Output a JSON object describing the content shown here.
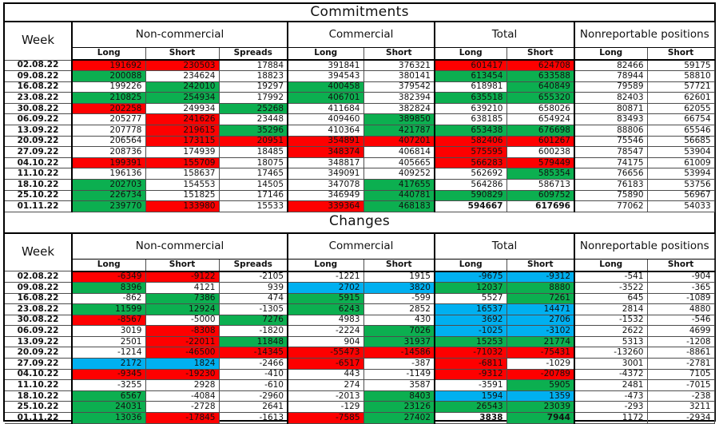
{
  "colors": {
    "green": "#0caf50",
    "red": "#fe0000",
    "blue": "#00b0f0"
  },
  "chart_data": [
    {
      "type": "table",
      "title": "Commitments",
      "week_label": "Week",
      "column_groups": [
        {
          "label": "Non-commercial",
          "columns": [
            "Long",
            "Short",
            "Spreads"
          ]
        },
        {
          "label": "Commercial",
          "columns": [
            "Long",
            "Short"
          ]
        },
        {
          "label": "Total",
          "columns": [
            "Long",
            "Short"
          ]
        },
        {
          "label": "Nonreportable positions",
          "columns": [
            "Long",
            "Short"
          ]
        }
      ],
      "rows": [
        {
          "week": "02.08.22",
          "values": [
            191692,
            230503,
            17884,
            391841,
            376321,
            601417,
            624708,
            82466,
            59175
          ],
          "highlights": [
            "red",
            "red",
            "",
            "",
            "",
            "red",
            "red",
            "",
            ""
          ]
        },
        {
          "week": "09.08.22",
          "values": [
            200088,
            234624,
            18823,
            394543,
            380141,
            613454,
            633588,
            78944,
            58810
          ],
          "highlights": [
            "green",
            "",
            "",
            "",
            "",
            "green",
            "green",
            "",
            ""
          ]
        },
        {
          "week": "16.08.22",
          "values": [
            199226,
            242010,
            19297,
            400458,
            379542,
            618981,
            640849,
            79589,
            57721
          ],
          "highlights": [
            "",
            "green",
            "",
            "green",
            "",
            "",
            "green",
            "",
            ""
          ]
        },
        {
          "week": "23.08.22",
          "values": [
            210825,
            254934,
            17992,
            406701,
            382394,
            635518,
            655320,
            82403,
            62601
          ],
          "highlights": [
            "green",
            "green",
            "",
            "green",
            "",
            "green",
            "green",
            "",
            ""
          ]
        },
        {
          "week": "30.08.22",
          "values": [
            202258,
            249934,
            25268,
            411684,
            382824,
            639210,
            658026,
            80871,
            62055
          ],
          "highlights": [
            "red",
            "",
            "green",
            "",
            "",
            "",
            "",
            "",
            ""
          ]
        },
        {
          "week": "06.09.22",
          "values": [
            205277,
            241626,
            23448,
            409460,
            389850,
            638185,
            654924,
            83493,
            66754
          ],
          "highlights": [
            "",
            "red",
            "",
            "",
            "green",
            "",
            "",
            "",
            ""
          ]
        },
        {
          "week": "13.09.22",
          "values": [
            207778,
            219615,
            35296,
            410364,
            421787,
            653438,
            676698,
            88806,
            65546
          ],
          "highlights": [
            "",
            "red",
            "green",
            "",
            "green",
            "green",
            "green",
            "",
            ""
          ]
        },
        {
          "week": "20.09.22",
          "values": [
            206564,
            173115,
            20951,
            354891,
            407201,
            582406,
            601267,
            75546,
            56685
          ],
          "highlights": [
            "",
            "red",
            "red",
            "red",
            "red",
            "red",
            "red",
            "",
            ""
          ]
        },
        {
          "week": "27.09.22",
          "values": [
            208736,
            174939,
            18485,
            348374,
            406814,
            575595,
            600238,
            78547,
            53904
          ],
          "highlights": [
            "",
            "",
            "",
            "red",
            "",
            "red",
            "",
            "",
            ""
          ]
        },
        {
          "week": "04.10.22",
          "values": [
            199391,
            155709,
            18075,
            348817,
            405665,
            566283,
            579449,
            74175,
            61009
          ],
          "highlights": [
            "red",
            "red",
            "",
            "",
            "",
            "red",
            "red",
            "",
            ""
          ]
        },
        {
          "week": "11.10.22",
          "values": [
            196136,
            158637,
            17465,
            349091,
            409252,
            562692,
            585354,
            76656,
            53994
          ],
          "highlights": [
            "",
            "",
            "",
            "",
            "",
            "",
            "green",
            "",
            ""
          ]
        },
        {
          "week": "18.10.22",
          "values": [
            202703,
            154553,
            14505,
            347078,
            417655,
            564286,
            586713,
            76183,
            53756
          ],
          "highlights": [
            "green",
            "",
            "",
            "",
            "green",
            "",
            "",
            "",
            ""
          ]
        },
        {
          "week": "25.10.22",
          "values": [
            226734,
            151825,
            17146,
            346949,
            440781,
            590829,
            609752,
            75890,
            56967
          ],
          "highlights": [
            "green",
            "",
            "",
            "",
            "green",
            "green",
            "green",
            "",
            ""
          ]
        },
        {
          "week": "01.11.22",
          "values": [
            239770,
            133980,
            15533,
            339364,
            468183,
            594667,
            617696,
            77062,
            54033
          ],
          "highlights": [
            "green",
            "red",
            "",
            "red",
            "green",
            "",
            "",
            "",
            ""
          ],
          "bold_cols": [
            5,
            6
          ]
        }
      ]
    },
    {
      "type": "table",
      "title": "Changes",
      "week_label": "Week",
      "column_groups": [
        {
          "label": "Non-commercial",
          "columns": [
            "Long",
            "Short",
            "Spreads"
          ]
        },
        {
          "label": "Commercial",
          "columns": [
            "Long",
            "Short"
          ]
        },
        {
          "label": "Total",
          "columns": [
            "Long",
            "Short"
          ]
        },
        {
          "label": "Nonreportable positions",
          "columns": [
            "Long",
            "Short"
          ]
        }
      ],
      "rows": [
        {
          "week": "02.08.22",
          "values": [
            -6349,
            -9122,
            -2105,
            -1221,
            1915,
            -9675,
            -9312,
            -541,
            -904
          ],
          "highlights": [
            "red",
            "red",
            "",
            "",
            "",
            "blue",
            "blue",
            "",
            ""
          ]
        },
        {
          "week": "09.08.22",
          "values": [
            8396,
            4121,
            939,
            2702,
            3820,
            12037,
            8880,
            -3522,
            -365
          ],
          "highlights": [
            "green",
            "",
            "",
            "blue",
            "blue",
            "green",
            "green",
            "",
            ""
          ]
        },
        {
          "week": "16.08.22",
          "values": [
            -862,
            7386,
            474,
            5915,
            -599,
            5527,
            7261,
            645,
            -1089
          ],
          "highlights": [
            "",
            "green",
            "",
            "green",
            "",
            "",
            "green",
            "",
            ""
          ]
        },
        {
          "week": "23.08.22",
          "values": [
            11599,
            12924,
            -1305,
            6243,
            2852,
            16537,
            14471,
            2814,
            4880
          ],
          "highlights": [
            "green",
            "green",
            "",
            "green",
            "",
            "blue",
            "blue",
            "",
            ""
          ]
        },
        {
          "week": "30.08.22",
          "values": [
            -8567,
            -5000,
            7276,
            4983,
            430,
            3692,
            2706,
            -1532,
            -546
          ],
          "highlights": [
            "red",
            "",
            "green",
            "",
            "",
            "blue",
            "blue",
            "",
            ""
          ]
        },
        {
          "week": "06.09.22",
          "values": [
            3019,
            -8308,
            -1820,
            -2224,
            7026,
            -1025,
            -3102,
            2622,
            4699
          ],
          "highlights": [
            "",
            "red",
            "",
            "",
            "green",
            "blue",
            "blue",
            "",
            ""
          ]
        },
        {
          "week": "13.09.22",
          "values": [
            2501,
            -22011,
            11848,
            904,
            31937,
            15253,
            21774,
            5313,
            -1208
          ],
          "highlights": [
            "",
            "red",
            "green",
            "",
            "green",
            "green",
            "green",
            "",
            ""
          ]
        },
        {
          "week": "20.09.22",
          "values": [
            -1214,
            -46500,
            -14345,
            -55473,
            -14586,
            -71032,
            -75431,
            -13260,
            -8861
          ],
          "highlights": [
            "",
            "red",
            "red",
            "red",
            "red",
            "red",
            "red",
            "",
            ""
          ]
        },
        {
          "week": "27.09.22",
          "values": [
            2172,
            1824,
            -2466,
            -6517,
            -387,
            -6811,
            -1029,
            3001,
            -2781
          ],
          "highlights": [
            "blue",
            "blue",
            "",
            "red",
            "",
            "red",
            "",
            "",
            ""
          ]
        },
        {
          "week": "04.10.22",
          "values": [
            -9345,
            -19230,
            -410,
            443,
            -1149,
            -9312,
            -20789,
            -4372,
            7105
          ],
          "highlights": [
            "red",
            "red",
            "",
            "",
            "",
            "red",
            "red",
            "",
            ""
          ]
        },
        {
          "week": "11.10.22",
          "values": [
            -3255,
            2928,
            -610,
            274,
            3587,
            -3591,
            5905,
            2481,
            -7015
          ],
          "highlights": [
            "",
            "",
            "",
            "",
            "",
            "",
            "green",
            "",
            ""
          ]
        },
        {
          "week": "18.10.22",
          "values": [
            6567,
            -4084,
            -2960,
            -2013,
            8403,
            1594,
            1359,
            -473,
            -238
          ],
          "highlights": [
            "green",
            "",
            "",
            "",
            "green",
            "blue",
            "blue",
            "",
            ""
          ]
        },
        {
          "week": "25.10.22",
          "values": [
            24031,
            -2728,
            2641,
            -129,
            23126,
            26543,
            23039,
            -293,
            3211
          ],
          "highlights": [
            "green",
            "",
            "",
            "",
            "green",
            "green",
            "green",
            "",
            ""
          ]
        },
        {
          "week": "01.11.22",
          "values": [
            13036,
            -17845,
            -1613,
            -7585,
            27402,
            3838,
            7944,
            1172,
            -2934
          ],
          "highlights": [
            "green",
            "red",
            "",
            "red",
            "green",
            "",
            "green",
            "",
            ""
          ],
          "bold_cols": [
            5,
            6
          ]
        }
      ]
    }
  ]
}
